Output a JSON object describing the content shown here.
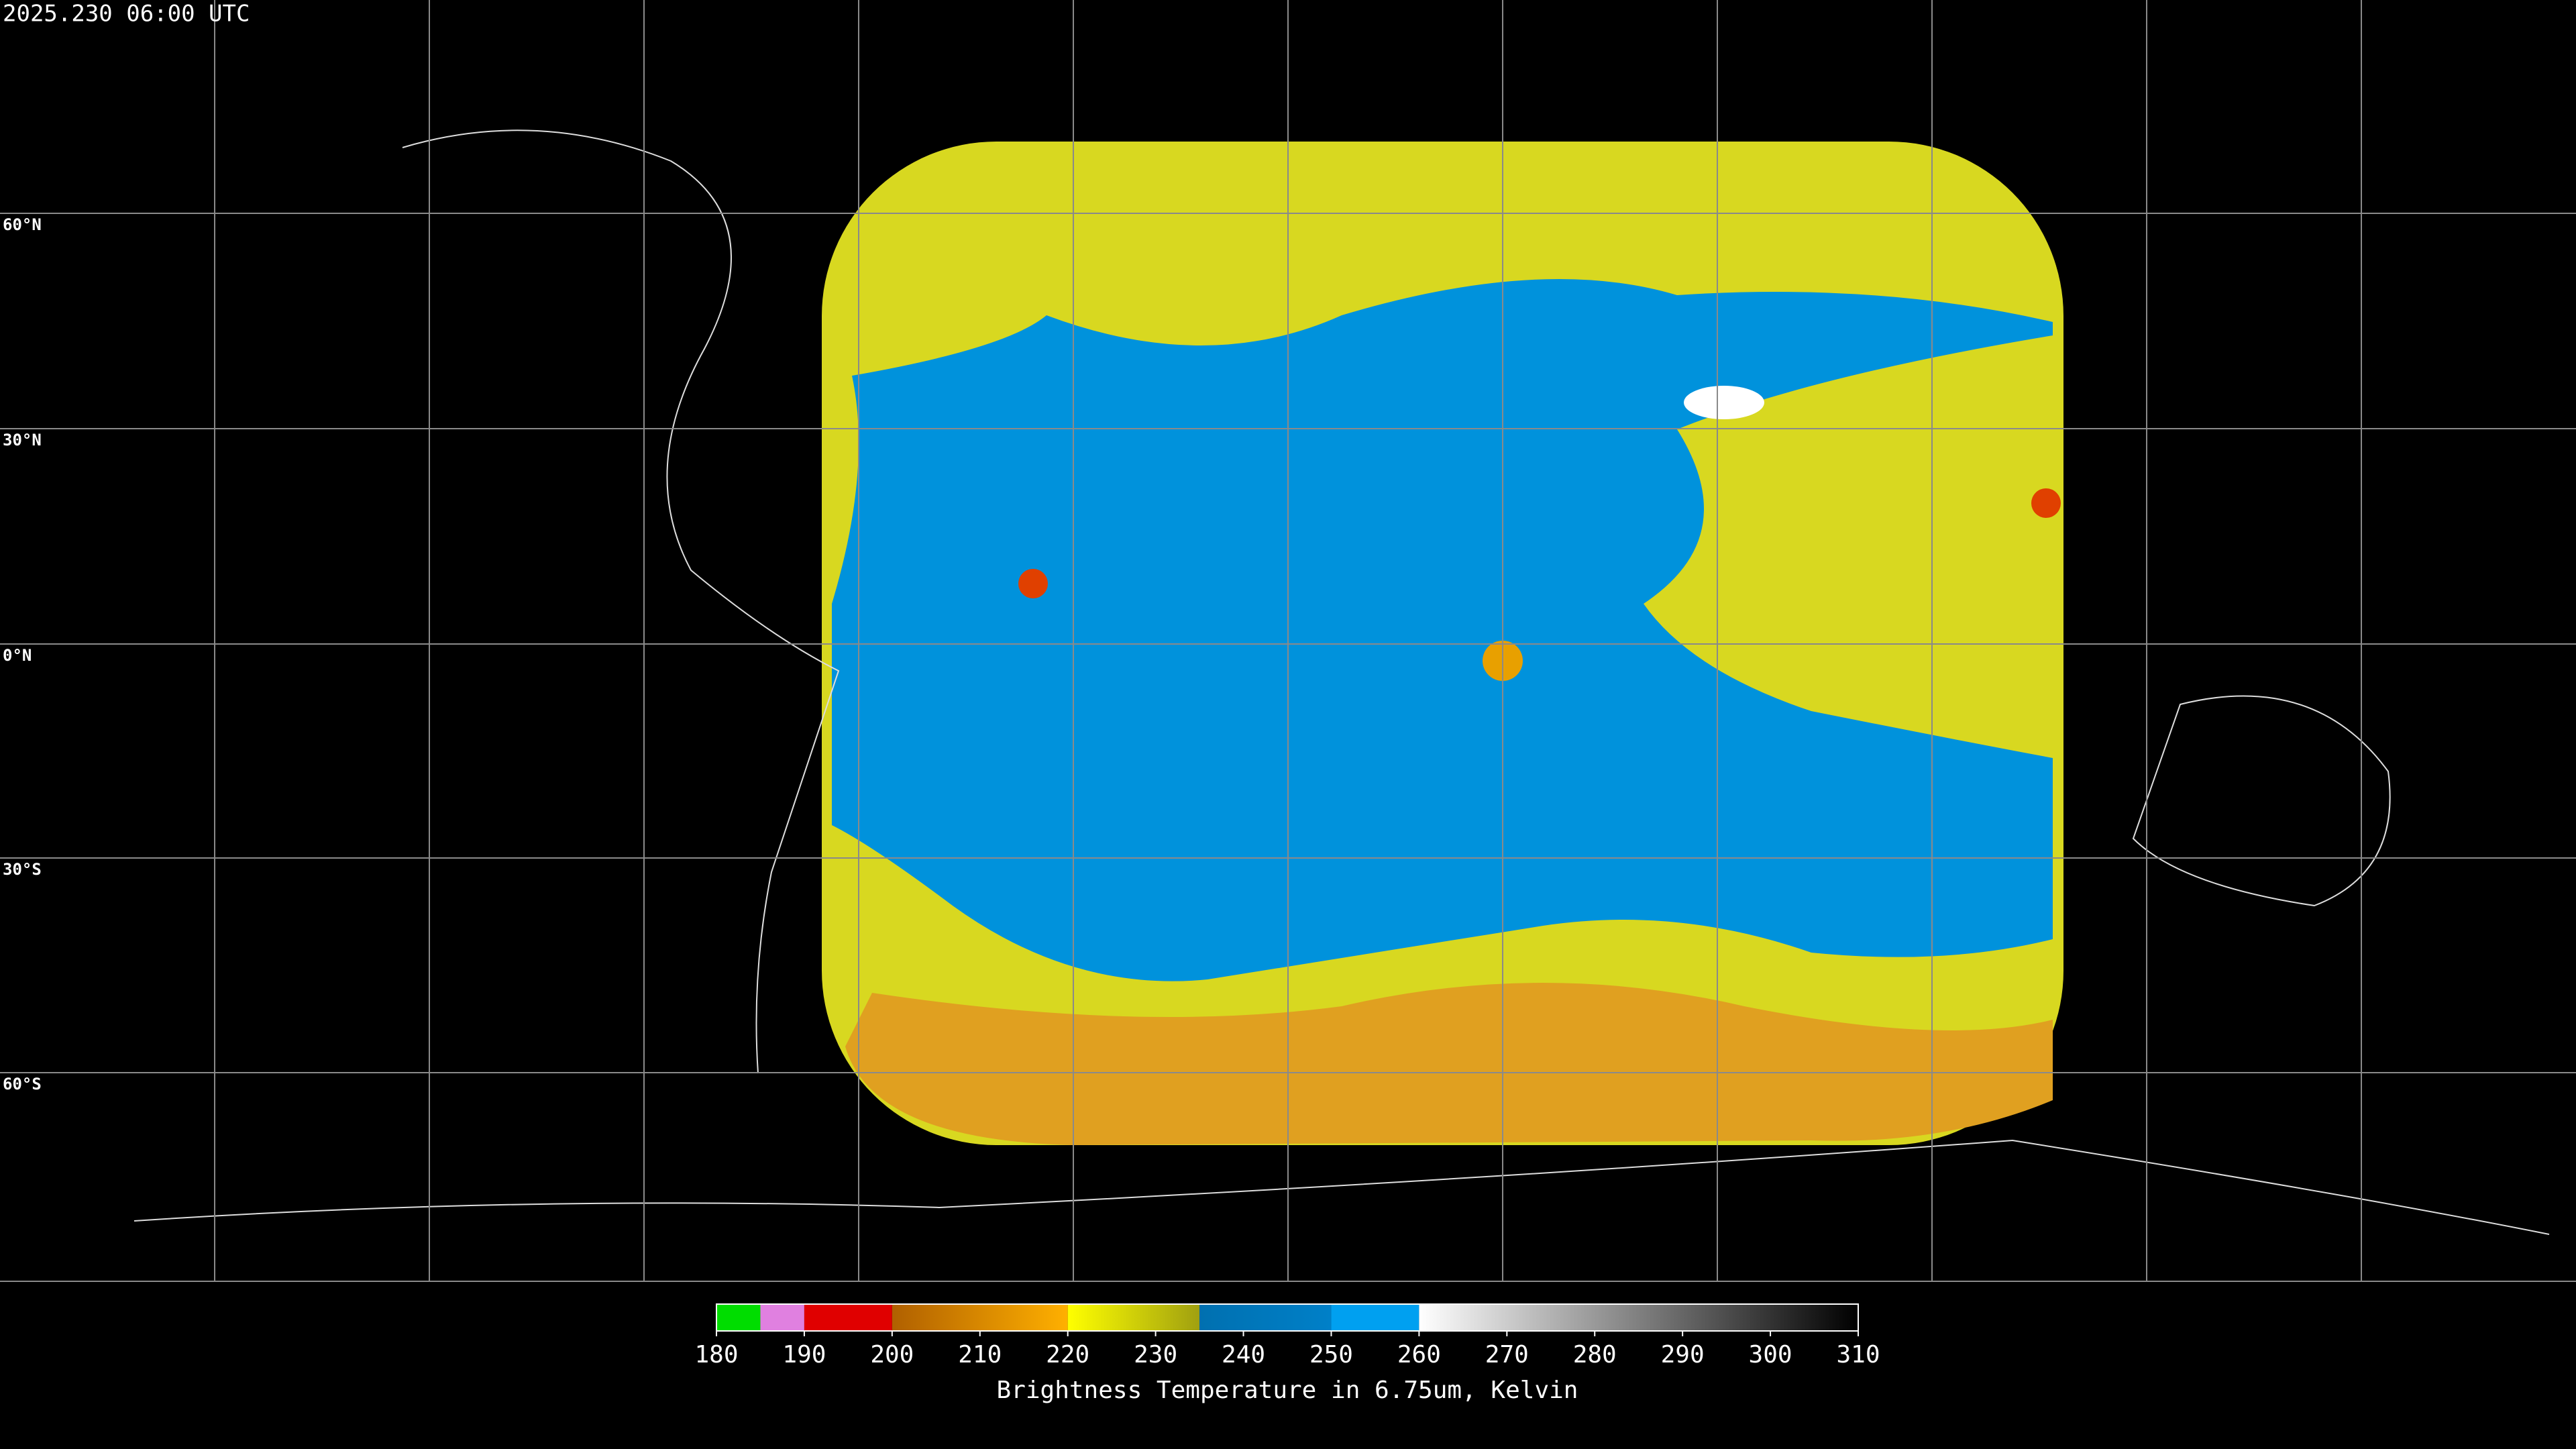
{
  "timestamp": "2025.230 06:00 UTC",
  "latitude_labels": [
    "60°N",
    "30°N",
    "0°N",
    "30°S",
    "60°S"
  ],
  "colorbar": {
    "label": "Brightness Temperature in 6.75um, Kelvin",
    "range": [
      180,
      310
    ],
    "ticks": [
      180,
      190,
      200,
      210,
      220,
      230,
      240,
      250,
      260,
      270,
      280,
      290,
      300,
      310
    ],
    "segments": [
      {
        "from": 180,
        "to": 185,
        "color_start": "#00dd00",
        "color_end": "#00dd00"
      },
      {
        "from": 185,
        "to": 190,
        "color_start": "#e080e0",
        "color_end": "#e080e0"
      },
      {
        "from": 190,
        "to": 200,
        "color_start": "#e00000",
        "color_end": "#e00000"
      },
      {
        "from": 200,
        "to": 220,
        "color_start": "#b06000",
        "color_end": "#ffb000"
      },
      {
        "from": 220,
        "to": 235,
        "color_start": "#ffff00",
        "color_end": "#a0a010"
      },
      {
        "from": 235,
        "to": 250,
        "color_start": "#0070b0",
        "color_end": "#0080c8"
      },
      {
        "from": 250,
        "to": 260,
        "color_start": "#00a0f0",
        "color_end": "#00a0f0"
      },
      {
        "from": 260,
        "to": 310,
        "color_start": "#ffffff",
        "color_end": "#000000"
      }
    ]
  }
}
